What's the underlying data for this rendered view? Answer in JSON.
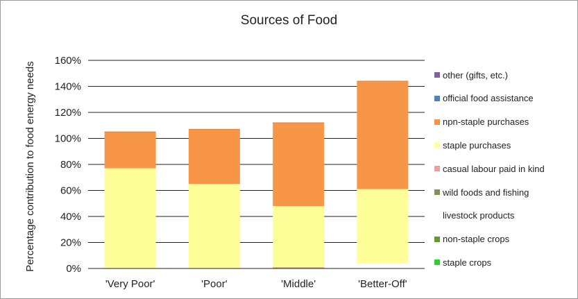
{
  "chart_data": {
    "type": "bar",
    "stacked": true,
    "title": "Sources of Food",
    "ylabel": "Percentage contribution to food energy needs",
    "xlabel": "",
    "ylim": [
      0,
      160
    ],
    "yticks": [
      "0%",
      "20%",
      "40%",
      "60%",
      "80%",
      "100%",
      "120%",
      "140%",
      "160%"
    ],
    "ytick_values": [
      0,
      20,
      40,
      60,
      80,
      100,
      120,
      140,
      160
    ],
    "grid": "horizontal",
    "legend_position": "right",
    "categories": [
      "'Very Poor'",
      "'Poor'",
      "'Middle'",
      "'Better-Off'"
    ],
    "series": [
      {
        "name": "staple crops",
        "color": "#33cc33",
        "values": [
          0,
          0,
          0,
          0
        ]
      },
      {
        "name": "non-staple crops",
        "color": "#669933",
        "values": [
          0,
          0,
          0,
          0
        ]
      },
      {
        "name": "livestock products",
        "color": "#ffffff",
        "values": [
          0,
          0,
          0,
          4
        ]
      },
      {
        "name": "wild foods and fishing",
        "color": "#8c8c5a",
        "values": [
          0,
          0,
          0,
          0
        ]
      },
      {
        "name": "casual labour paid in kind",
        "color": "#e8a0a0",
        "values": [
          0,
          0,
          1,
          0
        ]
      },
      {
        "name": "staple purchases",
        "color": "#ffff99",
        "values": [
          77,
          65,
          47,
          57
        ]
      },
      {
        "name": "npn-staple purchases",
        "color": "#f79646",
        "values": [
          28,
          42,
          64,
          83
        ]
      },
      {
        "name": "official food assistance",
        "color": "#4f81bd",
        "values": [
          0,
          0,
          0,
          0
        ]
      },
      {
        "name": "other (gifts, etc.)",
        "color": "#8064a2",
        "values": [
          0,
          0,
          0,
          0
        ]
      }
    ]
  }
}
